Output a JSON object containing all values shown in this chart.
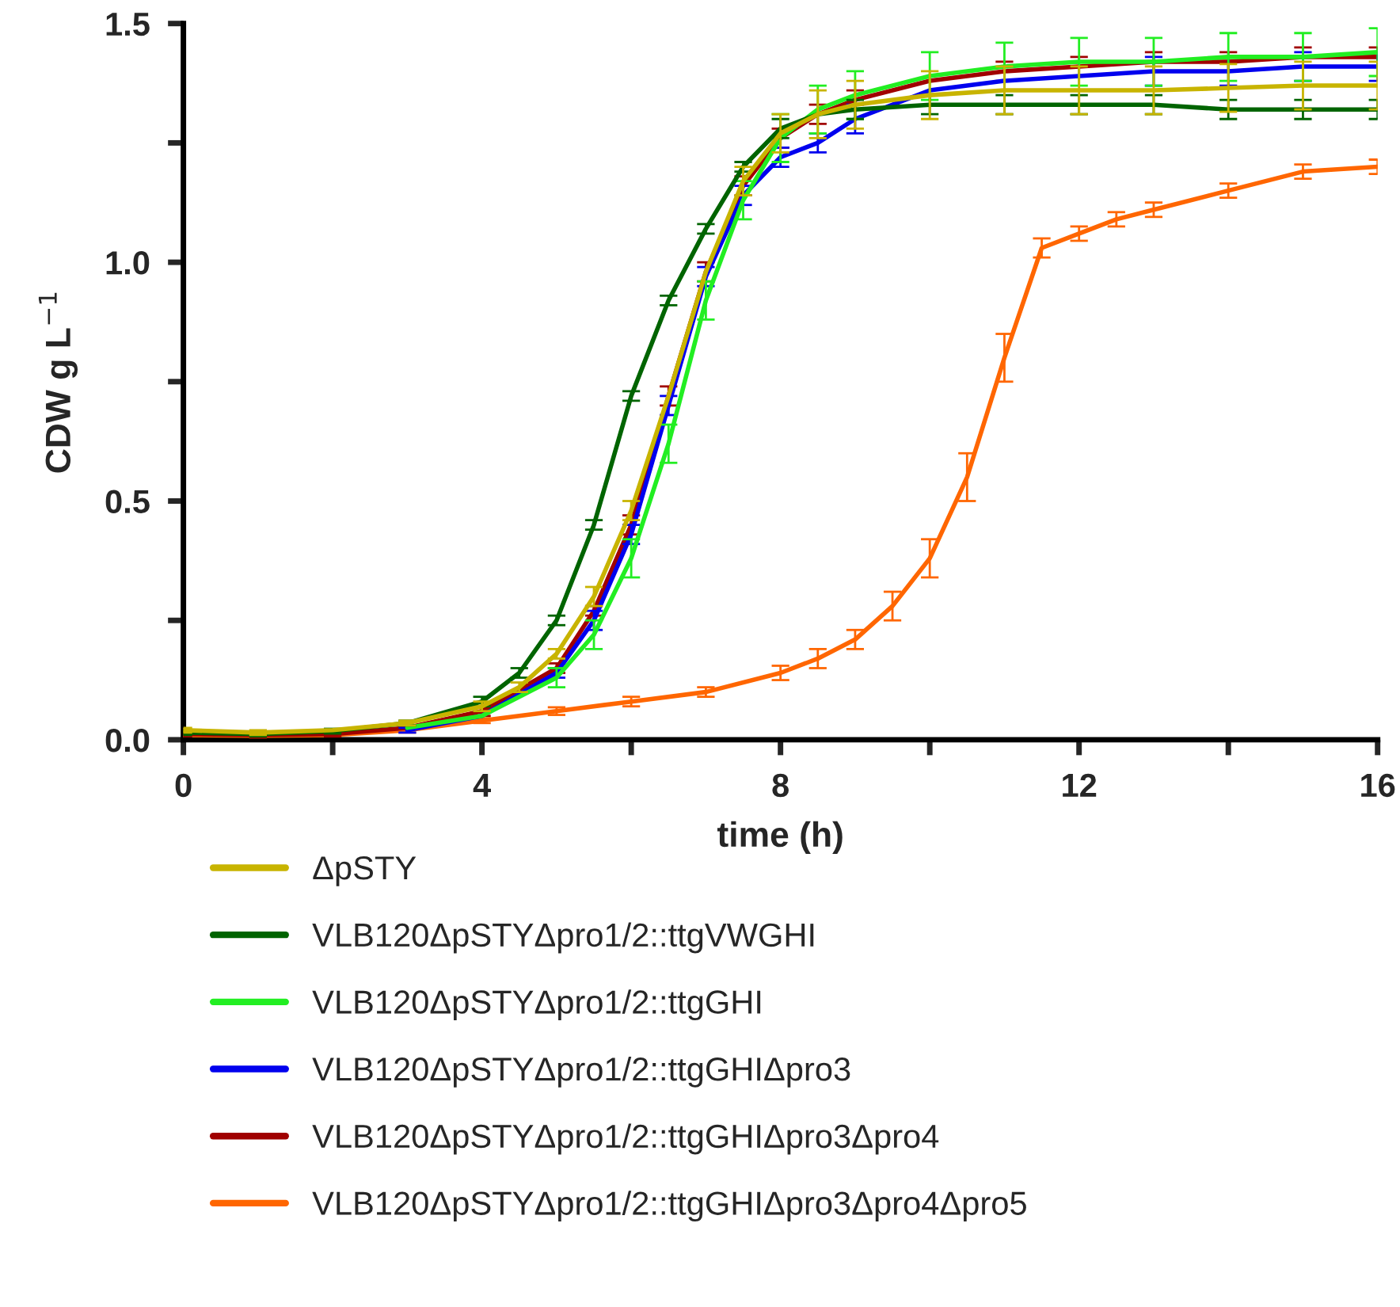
{
  "chart_data": {
    "type": "line",
    "xlabel": "time (h)",
    "ylabel": "CDW g L$^{−1}$",
    "xlim": [
      0,
      16
    ],
    "ylim": [
      0,
      1.5
    ],
    "xticks": [
      0,
      {
        "value": 2,
        "label": null
      },
      4,
      {
        "value": 6,
        "label": null
      },
      8,
      {
        "value": 10,
        "label": null
      },
      12,
      {
        "value": 14,
        "label": null
      },
      16
    ],
    "yticks": [
      {
        "value": 0,
        "label": "0.0"
      },
      {
        "value": 0.25,
        "label": null
      },
      {
        "value": 0.5,
        "label": "0.5"
      },
      {
        "value": 0.75,
        "label": null
      },
      {
        "value": 1.0,
        "label": "1.0"
      },
      {
        "value": 1.25,
        "label": null
      },
      {
        "value": 1.5,
        "label": "1.5"
      }
    ],
    "grid": false,
    "legend": "bottom",
    "marker": "none",
    "line_style": "solid",
    "series": [
      {
        "name": "ΔpSTY",
        "color": "#c8b400",
        "x": [
          0,
          1,
          2,
          3,
          4,
          4.5,
          5,
          5.5,
          6,
          6.5,
          7,
          7.5,
          8,
          8.5,
          9,
          10,
          11,
          12,
          13,
          14,
          15,
          16
        ],
        "values": [
          0.02,
          0.015,
          0.02,
          0.035,
          0.07,
          0.11,
          0.18,
          0.3,
          0.48,
          0.72,
          0.98,
          1.17,
          1.27,
          1.31,
          1.33,
          1.35,
          1.36,
          1.36,
          1.36,
          1.365,
          1.37,
          1.37
        ],
        "errors": [
          0.005,
          0.005,
          null,
          0.005,
          0.01,
          0.01,
          0.01,
          0.02,
          0.02,
          null,
          null,
          0.03,
          0.04,
          0.05,
          0.05,
          0.05,
          0.05,
          0.05,
          0.05,
          0.05,
          0.05,
          0.05
        ]
      },
      {
        "name": "VLB120ΔpSTYΔpro1/2::ttgVWGHI",
        "color": "#006400",
        "x": [
          0,
          1,
          2,
          3,
          4,
          4.5,
          5,
          5.5,
          6,
          6.5,
          7,
          7.5,
          8,
          8.5,
          9,
          10,
          11,
          12,
          13,
          14,
          15,
          16
        ],
        "values": [
          0.015,
          0.012,
          0.018,
          0.035,
          0.08,
          0.14,
          0.25,
          0.45,
          0.72,
          0.92,
          1.07,
          1.2,
          1.28,
          1.31,
          1.32,
          1.33,
          1.33,
          1.33,
          1.33,
          1.32,
          1.32,
          1.32
        ],
        "errors": [
          0.005,
          0.005,
          0.005,
          0.005,
          0.01,
          0.01,
          0.01,
          0.01,
          0.01,
          0.01,
          0.01,
          0.01,
          0.02,
          null,
          0.02,
          0.02,
          0.02,
          0.02,
          0.02,
          0.02,
          0.02,
          0.02
        ]
      },
      {
        "name": "VLB120ΔpSTYΔpro1/2::ttgGHI",
        "color": "#22ee22",
        "x": [
          3,
          4,
          5,
          5.5,
          6,
          6.5,
          7,
          7.5,
          8,
          8.5,
          9,
          10,
          11,
          12,
          13,
          14,
          15,
          16
        ],
        "values": [
          0.025,
          0.05,
          0.13,
          0.22,
          0.38,
          0.62,
          0.92,
          1.13,
          1.26,
          1.32,
          1.35,
          1.39,
          1.41,
          1.42,
          1.42,
          1.43,
          1.43,
          1.44
        ],
        "errors": [
          null,
          null,
          0.02,
          0.03,
          0.04,
          0.04,
          0.04,
          0.04,
          0.05,
          0.05,
          0.05,
          0.05,
          0.05,
          0.05,
          0.05,
          0.05,
          0.05,
          0.05
        ]
      },
      {
        "name": "VLB120ΔpSTYΔpro1/2::ttgGHIΔpro3",
        "color": "#0000ee",
        "x": [
          3,
          4,
          5,
          5.5,
          6,
          6.5,
          7,
          7.5,
          8,
          8.5,
          9,
          10,
          11,
          12,
          13,
          14,
          15,
          16
        ],
        "values": [
          0.02,
          0.05,
          0.14,
          0.25,
          0.43,
          0.7,
          0.97,
          1.14,
          1.22,
          1.25,
          1.3,
          1.36,
          1.38,
          1.39,
          1.4,
          1.4,
          1.41,
          1.41
        ],
        "errors": [
          0.005,
          null,
          0.01,
          0.02,
          0.02,
          0.02,
          0.02,
          0.02,
          0.02,
          0.02,
          0.03,
          null,
          null,
          null,
          0.03,
          0.03,
          0.03,
          0.03
        ]
      },
      {
        "name": "VLB120ΔpSTYΔpro1/2::ttgGHIΔpro3Δpro4",
        "color": "#a00000",
        "x": [
          0,
          1,
          2,
          3,
          4,
          5,
          5.5,
          6,
          6.5,
          7,
          7.5,
          8,
          8.5,
          9,
          10,
          11,
          12,
          13,
          14,
          15,
          16
        ],
        "values": [
          0.012,
          0.01,
          0.012,
          0.025,
          0.06,
          0.15,
          0.27,
          0.45,
          0.72,
          0.98,
          1.16,
          1.26,
          1.31,
          1.34,
          1.38,
          1.4,
          1.41,
          1.42,
          1.42,
          1.43,
          1.43
        ],
        "errors": [
          0.005,
          0.005,
          0.005,
          null,
          0.01,
          0.01,
          0.01,
          0.02,
          0.02,
          0.02,
          0.02,
          0.02,
          0.02,
          0.02,
          null,
          0.02,
          0.02,
          0.02,
          0.02,
          0.02,
          0.02
        ]
      },
      {
        "name": "VLB120ΔpSTYΔpro1/2::ttgGHIΔpro3Δpro4Δpro5",
        "color": "#ff6600",
        "x": [
          0,
          1,
          2,
          3,
          4,
          5,
          6,
          7,
          8,
          8.5,
          9,
          9.5,
          10,
          10.5,
          11,
          11.5,
          12,
          12.5,
          13,
          14,
          15,
          16
        ],
        "values": [
          0.01,
          0.008,
          0.01,
          0.02,
          0.04,
          0.06,
          0.08,
          0.1,
          0.14,
          0.17,
          0.21,
          0.28,
          0.38,
          0.55,
          0.8,
          1.03,
          1.06,
          1.09,
          1.11,
          1.15,
          1.19,
          1.2
        ],
        "errors": [
          0.003,
          0.003,
          0.003,
          0.005,
          0.005,
          0.008,
          0.01,
          0.01,
          0.015,
          0.02,
          0.02,
          0.03,
          0.04,
          0.05,
          0.05,
          0.02,
          0.015,
          0.015,
          0.015,
          0.015,
          0.015,
          0.015
        ]
      }
    ]
  }
}
